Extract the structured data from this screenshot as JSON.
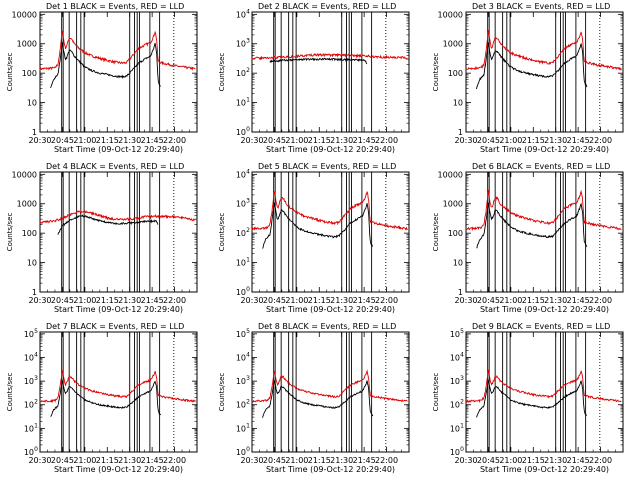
{
  "figure": {
    "xlabel": "Start Time (09-Oct-12 20:29:40)",
    "ylabel": "Counts/sec"
  },
  "legend_text": {
    "black": "BLACK = Events",
    "red": "RED = LLD"
  },
  "colors": {
    "events": "#000000",
    "lld": "#dd0000",
    "axes": "#000000",
    "background": "#ffffff"
  },
  "chart_data": [
    {
      "type": "line",
      "title": "Det 1",
      "tick_style": "decimal",
      "profile": "flare",
      "ylim": [
        1,
        12000
      ],
      "yticks": [
        1,
        10,
        100,
        1000,
        10000
      ]
    },
    {
      "type": "line",
      "title": "Det 2",
      "tick_style": "power",
      "profile": "flat",
      "ylim": [
        1,
        12000
      ],
      "yticks": [
        1,
        10,
        100,
        1000,
        10000
      ]
    },
    {
      "type": "line",
      "title": "Det 3",
      "tick_style": "decimal",
      "profile": "flare",
      "ylim": [
        1,
        12000
      ],
      "yticks": [
        1,
        10,
        100,
        1000,
        10000
      ]
    },
    {
      "type": "line",
      "title": "Det 4",
      "tick_style": "decimal",
      "profile": "smooth",
      "ylim": [
        1,
        12000
      ],
      "yticks": [
        1,
        10,
        100,
        1000,
        10000
      ]
    },
    {
      "type": "line",
      "title": "Det 5",
      "tick_style": "power",
      "profile": "flare",
      "ylim": [
        1,
        12000
      ],
      "yticks": [
        1,
        10,
        100,
        1000,
        10000
      ]
    },
    {
      "type": "line",
      "title": "Det 6",
      "tick_style": "decimal",
      "profile": "flare",
      "ylim": [
        1,
        12000
      ],
      "yticks": [
        1,
        10,
        100,
        1000,
        10000
      ]
    },
    {
      "type": "line",
      "title": "Det 7",
      "tick_style": "power",
      "profile": "flare",
      "ylim": [
        1,
        120000
      ],
      "yticks": [
        1,
        10,
        100,
        1000,
        10000,
        100000
      ]
    },
    {
      "type": "line",
      "title": "Det 8",
      "tick_style": "power",
      "profile": "flare",
      "ylim": [
        1,
        120000
      ],
      "yticks": [
        1,
        10,
        100,
        1000,
        10000,
        100000
      ]
    },
    {
      "type": "line",
      "title": "Det 9",
      "tick_style": "power",
      "profile": "flare",
      "ylim": [
        1,
        120000
      ],
      "yticks": [
        1,
        10,
        100,
        1000,
        10000,
        100000
      ]
    }
  ],
  "x_axis": {
    "start": "20:29:40",
    "range_minutes": [
      0,
      105
    ],
    "tick_minutes": [
      0,
      15,
      30,
      45,
      60,
      75,
      90
    ],
    "tick_labels": [
      "20:30",
      "20:45",
      "21:00",
      "21:15",
      "21:30",
      "21:45",
      "22:00"
    ]
  },
  "attenuator_lines_min": [
    14.5,
    15.5,
    19.5,
    24.5,
    27.3,
    29.5,
    60.0,
    63.2,
    65.0,
    66.5,
    73.5,
    80.0
  ],
  "dotted_line_min": 89.5
}
